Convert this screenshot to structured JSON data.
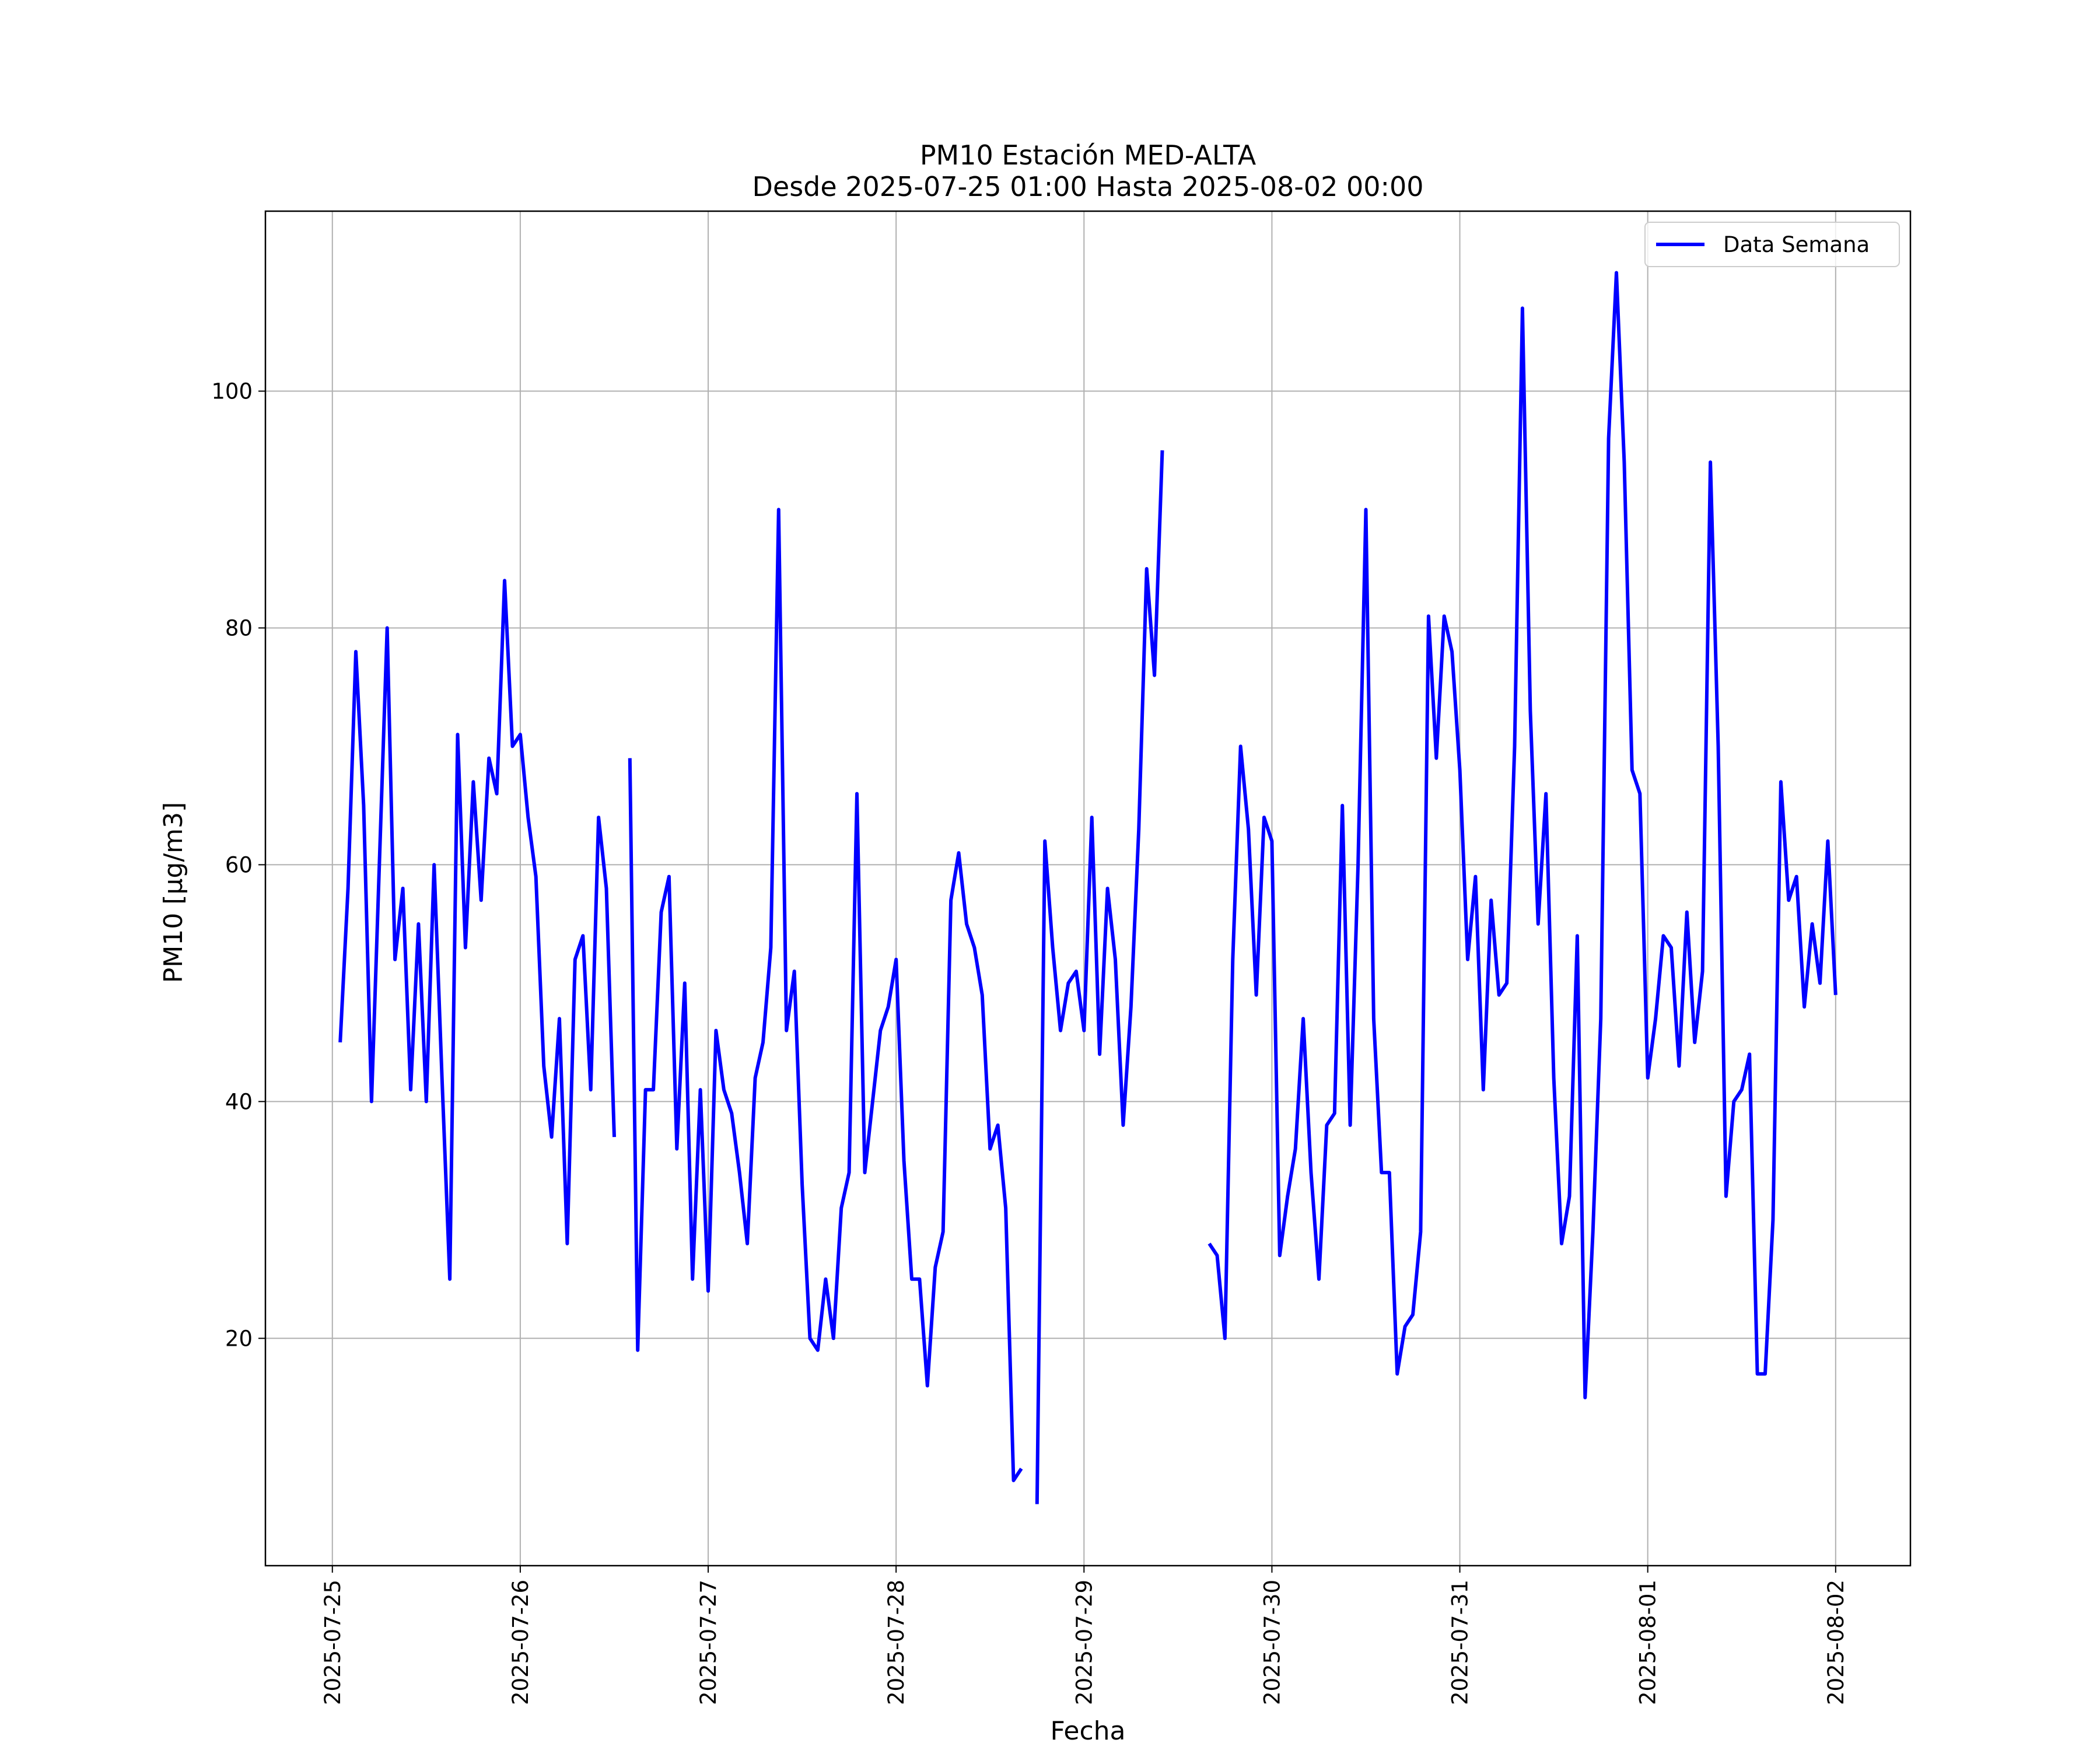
{
  "chart_data": {
    "type": "line",
    "title": "PM10 Estación MED-ALTA",
    "subtitle": "Desde 2025-07-25 01:00 Hasta 2025-08-02 00:00",
    "x_label": "Fecha",
    "y_label": "PM10 [μg/m3]",
    "x": [
      "2025-07-25 01:00",
      "2025-07-25 02:00",
      "2025-07-25 03:00",
      "2025-07-25 04:00",
      "2025-07-25 05:00",
      "2025-07-25 06:00",
      "2025-07-25 07:00",
      "2025-07-25 08:00",
      "2025-07-25 09:00",
      "2025-07-25 10:00",
      "2025-07-25 11:00",
      "2025-07-25 12:00",
      "2025-07-25 13:00",
      "2025-07-25 14:00",
      "2025-07-25 15:00",
      "2025-07-25 16:00",
      "2025-07-25 17:00",
      "2025-07-25 18:00",
      "2025-07-25 19:00",
      "2025-07-25 20:00",
      "2025-07-25 21:00",
      "2025-07-25 22:00",
      "2025-07-25 23:00",
      "2025-07-26 00:00",
      "2025-07-26 01:00",
      "2025-07-26 02:00",
      "2025-07-26 03:00",
      "2025-07-26 04:00",
      "2025-07-26 05:00",
      "2025-07-26 06:00",
      "2025-07-26 07:00",
      "2025-07-26 08:00",
      "2025-07-26 09:00",
      "2025-07-26 10:00",
      "2025-07-26 11:00",
      "2025-07-26 12:00",
      "2025-07-26 13:00",
      "2025-07-26 14:00",
      "2025-07-26 15:00",
      "2025-07-26 16:00",
      "2025-07-26 17:00",
      "2025-07-26 18:00",
      "2025-07-26 19:00",
      "2025-07-26 20:00",
      "2025-07-26 21:00",
      "2025-07-26 22:00",
      "2025-07-26 23:00",
      "2025-07-27 00:00",
      "2025-07-27 01:00",
      "2025-07-27 02:00",
      "2025-07-27 03:00",
      "2025-07-27 04:00",
      "2025-07-27 05:00",
      "2025-07-27 06:00",
      "2025-07-27 07:00",
      "2025-07-27 08:00",
      "2025-07-27 09:00",
      "2025-07-27 10:00",
      "2025-07-27 11:00",
      "2025-07-27 12:00",
      "2025-07-27 13:00",
      "2025-07-27 14:00",
      "2025-07-27 15:00",
      "2025-07-27 16:00",
      "2025-07-27 17:00",
      "2025-07-27 18:00",
      "2025-07-27 19:00",
      "2025-07-27 20:00",
      "2025-07-27 21:00",
      "2025-07-27 22:00",
      "2025-07-27 23:00",
      "2025-07-28 00:00",
      "2025-07-28 01:00",
      "2025-07-28 02:00",
      "2025-07-28 03:00",
      "2025-07-28 04:00",
      "2025-07-28 05:00",
      "2025-07-28 06:00",
      "2025-07-28 07:00",
      "2025-07-28 08:00",
      "2025-07-28 09:00",
      "2025-07-28 10:00",
      "2025-07-28 11:00",
      "2025-07-28 12:00",
      "2025-07-28 13:00",
      "2025-07-28 14:00",
      "2025-07-28 15:00",
      "2025-07-28 16:00",
      "2025-07-28 17:00",
      "2025-07-28 18:00",
      "2025-07-28 19:00",
      "2025-07-28 20:00",
      "2025-07-28 21:00",
      "2025-07-28 22:00",
      "2025-07-28 23:00",
      "2025-07-29 00:00",
      "2025-07-29 01:00",
      "2025-07-29 02:00",
      "2025-07-29 03:00",
      "2025-07-29 04:00",
      "2025-07-29 05:00",
      "2025-07-29 06:00",
      "2025-07-29 07:00",
      "2025-07-29 08:00",
      "2025-07-29 09:00",
      "2025-07-29 10:00",
      "2025-07-29 11:00",
      "2025-07-29 12:00",
      "2025-07-29 13:00",
      "2025-07-29 14:00",
      "2025-07-29 15:00",
      "2025-07-29 16:00",
      "2025-07-29 17:00",
      "2025-07-29 18:00",
      "2025-07-29 19:00",
      "2025-07-29 20:00",
      "2025-07-29 21:00",
      "2025-07-29 22:00",
      "2025-07-29 23:00",
      "2025-07-30 00:00",
      "2025-07-30 01:00",
      "2025-07-30 02:00",
      "2025-07-30 03:00",
      "2025-07-30 04:00",
      "2025-07-30 05:00",
      "2025-07-30 06:00",
      "2025-07-30 07:00",
      "2025-07-30 08:00",
      "2025-07-30 09:00",
      "2025-07-30 10:00",
      "2025-07-30 11:00",
      "2025-07-30 12:00",
      "2025-07-30 13:00",
      "2025-07-30 14:00",
      "2025-07-30 15:00",
      "2025-07-30 16:00",
      "2025-07-30 17:00",
      "2025-07-30 18:00",
      "2025-07-30 19:00",
      "2025-07-30 20:00",
      "2025-07-30 21:00",
      "2025-07-30 22:00",
      "2025-07-30 23:00",
      "2025-07-31 00:00",
      "2025-07-31 01:00",
      "2025-07-31 02:00",
      "2025-07-31 03:00",
      "2025-07-31 04:00",
      "2025-07-31 05:00",
      "2025-07-31 06:00",
      "2025-07-31 07:00",
      "2025-07-31 08:00",
      "2025-07-31 09:00",
      "2025-07-31 10:00",
      "2025-07-31 11:00",
      "2025-07-31 12:00",
      "2025-07-31 13:00",
      "2025-07-31 14:00",
      "2025-07-31 15:00",
      "2025-07-31 16:00",
      "2025-07-31 17:00",
      "2025-07-31 18:00",
      "2025-07-31 19:00",
      "2025-07-31 20:00",
      "2025-07-31 21:00",
      "2025-07-31 22:00",
      "2025-07-31 23:00",
      "2025-08-01 00:00",
      "2025-08-01 01:00",
      "2025-08-01 02:00",
      "2025-08-01 03:00",
      "2025-08-01 04:00",
      "2025-08-01 05:00",
      "2025-08-01 06:00",
      "2025-08-01 07:00",
      "2025-08-01 08:00",
      "2025-08-01 09:00",
      "2025-08-01 10:00",
      "2025-08-01 11:00",
      "2025-08-01 12:00",
      "2025-08-01 13:00",
      "2025-08-01 14:00",
      "2025-08-01 15:00",
      "2025-08-01 16:00",
      "2025-08-01 17:00",
      "2025-08-01 18:00",
      "2025-08-01 19:00",
      "2025-08-01 20:00",
      "2025-08-01 21:00",
      "2025-08-01 22:00",
      "2025-08-01 23:00",
      "2025-08-02 00:00"
    ],
    "series": [
      {
        "name": "Data Semana",
        "color": "#0000ff",
        "values": [
          45,
          58,
          78,
          65,
          40,
          60,
          80,
          52,
          58,
          41,
          55,
          40,
          60,
          42,
          25,
          71,
          53,
          67,
          57,
          69,
          66,
          84,
          70,
          71,
          64,
          59,
          43,
          37,
          47,
          28,
          52,
          54,
          41,
          64,
          58,
          37,
          null,
          69,
          19,
          41,
          41,
          56,
          59,
          36,
          50,
          25,
          41,
          24,
          46,
          41,
          39,
          34,
          28,
          42,
          45,
          53,
          90,
          46,
          51,
          33,
          20,
          19,
          25,
          20,
          31,
          34,
          66,
          34,
          40,
          46,
          48,
          52,
          35,
          25,
          25,
          16,
          26,
          29,
          57,
          61,
          55,
          53,
          49,
          36,
          38,
          31,
          8,
          9,
          null,
          6,
          62,
          53,
          46,
          50,
          51,
          46,
          64,
          44,
          58,
          52,
          38,
          48,
          63,
          85,
          76,
          95,
          null,
          null,
          null,
          null,
          null,
          28,
          27,
          20,
          52,
          70,
          63,
          49,
          64,
          62,
          27,
          32,
          36,
          47,
          34,
          25,
          38,
          39,
          65,
          38,
          60,
          90,
          47,
          34,
          34,
          17,
          21,
          22,
          29,
          81,
          69,
          81,
          78,
          68,
          52,
          59,
          41,
          57,
          49,
          50,
          70,
          107,
          73,
          55,
          66,
          42,
          28,
          32,
          54,
          15,
          29,
          47,
          96,
          110,
          94,
          68,
          66,
          42,
          47,
          54,
          53,
          43,
          56,
          45,
          51,
          94,
          70,
          32,
          40,
          41,
          44,
          17,
          17,
          30,
          67,
          57,
          59,
          48,
          55,
          50,
          62,
          49
        ]
      }
    ],
    "xlim": [
      "2025-07-24 15:27",
      "2025-08-02 09:33"
    ],
    "xticks": [
      "2025-07-25",
      "2025-07-26",
      "2025-07-27",
      "2025-07-28",
      "2025-07-29",
      "2025-07-30",
      "2025-07-31",
      "2025-08-01",
      "2025-08-02"
    ],
    "ylim": [
      0.8,
      115.2
    ],
    "yticks": [
      20,
      40,
      60,
      80,
      100
    ],
    "grid": true,
    "legend": "upper right"
  }
}
